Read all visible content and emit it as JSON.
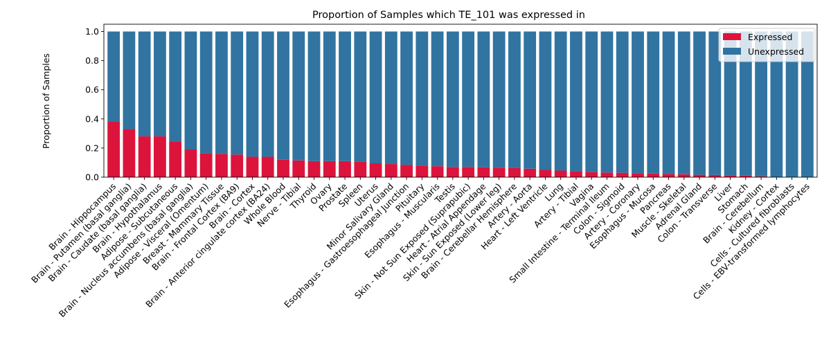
{
  "chart_data": {
    "type": "bar",
    "stacked": true,
    "title": "Proportion of Samples which TE_101 was expressed in",
    "xlabel": "",
    "ylabel": "Proportion of Samples",
    "ylim": [
      0,
      1.05
    ],
    "yticks": [
      "0.0",
      "0.2",
      "0.4",
      "0.6",
      "0.8",
      "1.0"
    ],
    "grid": false,
    "legend_position": "top-right",
    "categories": [
      "Brain - Hippocampus",
      "Brain - Putamen (basal ganglia)",
      "Brain - Caudate (basal ganglia)",
      "Brain - Hypothalamus",
      "Adipose - Subcutaneous",
      "Brain - Nucleus accumbens (basal ganglia)",
      "Adipose - Visceral (Omentum)",
      "Breast - Mammary Tissue",
      "Brain - Frontal Cortex (BA9)",
      "Brain - Cortex",
      "Brain - Anterior cingulate cortex (BA24)",
      "Whole Blood",
      "Nerve - Tibial",
      "Thyroid",
      "Ovary",
      "Prostate",
      "Spleen",
      "Uterus",
      "Minor Salivary Gland",
      "Esophagus - Gastroesophageal Junction",
      "Pituitary",
      "Esophagus - Muscularis",
      "Testis",
      "Skin - Not Sun Exposed (Suprapubic)",
      "Heart - Atrial Appendage",
      "Skin - Sun Exposed (Lower leg)",
      "Brain - Cerebellar Hemisphere",
      "Artery - Aorta",
      "Heart - Left Ventricle",
      "Lung",
      "Artery - Tibial",
      "Vagina",
      "Small Intestine - Terminal Ileum",
      "Colon - Sigmoid",
      "Artery - Coronary",
      "Esophagus - Mucosa",
      "Pancreas",
      "Muscle - Skeletal",
      "Adrenal Gland",
      "Colon - Transverse",
      "Liver",
      "Stomach",
      "Brain - Cerebellum",
      "Kidney - Cortex",
      "Cells - Cultured fibroblasts",
      "Cells - EBV-transformed lymphocytes"
    ],
    "series": [
      {
        "name": "Expressed",
        "color": "#dc143c",
        "values": [
          0.38,
          0.33,
          0.28,
          0.28,
          0.245,
          0.19,
          0.165,
          0.16,
          0.155,
          0.14,
          0.14,
          0.12,
          0.115,
          0.11,
          0.11,
          0.11,
          0.105,
          0.095,
          0.09,
          0.085,
          0.08,
          0.075,
          0.07,
          0.07,
          0.068,
          0.065,
          0.062,
          0.058,
          0.05,
          0.045,
          0.04,
          0.035,
          0.032,
          0.03,
          0.027,
          0.025,
          0.022,
          0.02,
          0.016,
          0.015,
          0.013,
          0.01,
          0.006,
          0.0,
          0.0,
          0.0
        ]
      },
      {
        "name": "Unexpressed",
        "color": "#3274a1",
        "values": [
          0.62,
          0.67,
          0.72,
          0.72,
          0.755,
          0.81,
          0.835,
          0.84,
          0.845,
          0.86,
          0.86,
          0.88,
          0.885,
          0.89,
          0.89,
          0.89,
          0.895,
          0.905,
          0.91,
          0.915,
          0.92,
          0.925,
          0.93,
          0.93,
          0.932,
          0.935,
          0.938,
          0.942,
          0.95,
          0.955,
          0.96,
          0.965,
          0.968,
          0.97,
          0.973,
          0.975,
          0.978,
          0.98,
          0.984,
          0.985,
          0.987,
          0.99,
          0.994,
          1.0,
          1.0,
          1.0
        ]
      }
    ]
  }
}
